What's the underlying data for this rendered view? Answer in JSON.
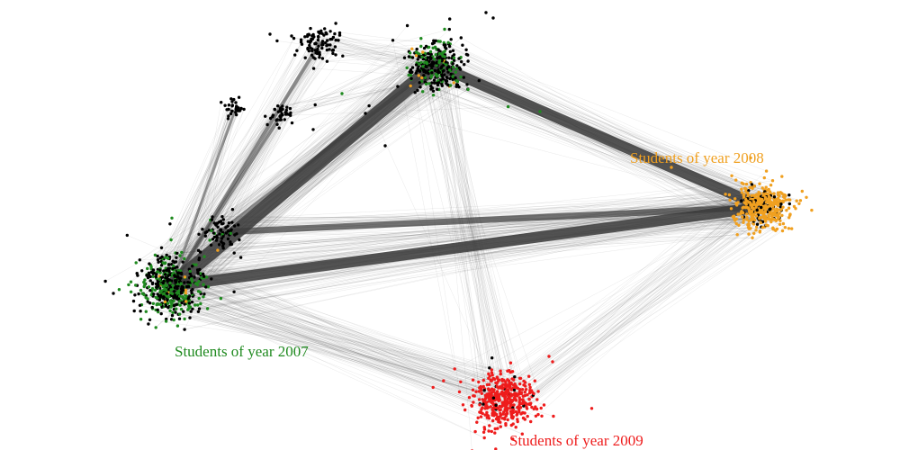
{
  "clusters": [
    {
      "id": "c2007",
      "label": "Students of year 2007",
      "color": "#1f8a1f",
      "members": 520
    },
    {
      "id": "c2008",
      "label": "Students of year 2008",
      "color": "#f0a020",
      "members": 430
    },
    {
      "id": "c2009",
      "label": "Students of year 2009",
      "color": "#ee1c1c",
      "members": 430
    },
    {
      "id": "cTop",
      "label": "",
      "color": "#000000",
      "members": 320
    },
    {
      "id": "cMid",
      "label": "",
      "color": "#000000",
      "members": 70
    },
    {
      "id": "cUp1",
      "label": "",
      "color": "#000000",
      "members": 90
    },
    {
      "id": "cUp2",
      "label": "",
      "color": "#000000",
      "members": 40
    },
    {
      "id": "cUp3",
      "label": "",
      "color": "#000000",
      "members": 30
    }
  ],
  "node_colors": {
    "green": "#1f8a1f",
    "orange": "#f0a020",
    "red": "#ee1c1c",
    "black": "#000000",
    "edge": "#444444"
  }
}
